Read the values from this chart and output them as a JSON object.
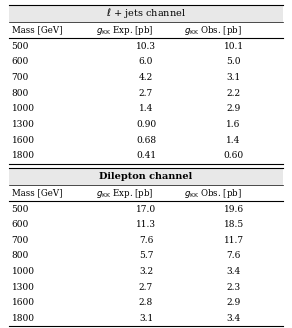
{
  "title1": "$\\ell$ + jets channel",
  "title2": "Dilepton channel",
  "ljets": [
    [
      "500",
      "10.3",
      "10.1"
    ],
    [
      "600",
      "6.0",
      "5.0"
    ],
    [
      "700",
      "4.2",
      "3.1"
    ],
    [
      "800",
      "2.7",
      "2.2"
    ],
    [
      "1000",
      "1.4",
      "2.9"
    ],
    [
      "1300",
      "0.90",
      "1.6"
    ],
    [
      "1600",
      "0.68",
      "1.4"
    ],
    [
      "1800",
      "0.41",
      "0.60"
    ]
  ],
  "dilepton": [
    [
      "500",
      "17.0",
      "19.6"
    ],
    [
      "600",
      "11.3",
      "18.5"
    ],
    [
      "700",
      "7.6",
      "11.7"
    ],
    [
      "800",
      "5.7",
      "7.6"
    ],
    [
      "1000",
      "3.2",
      "3.4"
    ],
    [
      "1300",
      "2.7",
      "2.3"
    ],
    [
      "1600",
      "2.8",
      "2.9"
    ],
    [
      "1800",
      "3.1",
      "3.4"
    ]
  ],
  "figsize": [
    2.92,
    3.28
  ],
  "dpi": 100,
  "title_bg": "#e8e8e8",
  "fs_title": 7.0,
  "fs_header": 6.2,
  "fs_data": 6.5,
  "header1": "Mass [GeV]",
  "header2": "$g_{\\mathrm{KK}}$ Exp. [pb]",
  "header3": "$g_{\\mathrm{KK}}$ Obs. [pb]"
}
